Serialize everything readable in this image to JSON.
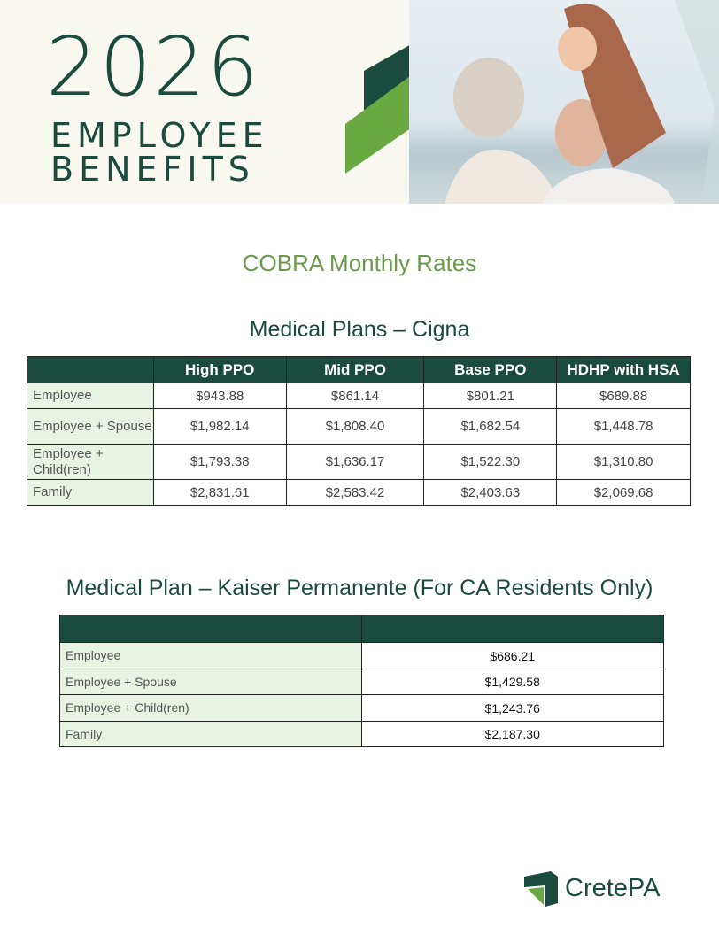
{
  "header": {
    "year": "2026",
    "line1": "EMPLOYEE",
    "line2": "BENEFITS"
  },
  "page_title": "COBRA Monthly Rates",
  "cigna": {
    "title": "Medical Plans – Cigna",
    "columns": [
      "",
      "High PPO",
      "Mid PPO",
      "Base PPO",
      "HDHP with HSA"
    ],
    "rows": [
      {
        "tier": "Employee",
        "values": [
          "$943.88",
          "$861.14",
          "$801.21",
          "$689.88"
        ]
      },
      {
        "tier": "Employee + Spouse",
        "values": [
          "$1,982.14",
          "$1,808.40",
          "$1,682.54",
          "$1,448.78"
        ]
      },
      {
        "tier": "Employee + Child(ren)",
        "values": [
          "$1,793.38",
          "$1,636.17",
          "$1,522.30",
          "$1,310.80"
        ]
      },
      {
        "tier": "Family",
        "values": [
          "$2,831.61",
          "$2,583.42",
          "$2,403.63",
          "$2,069.68"
        ]
      }
    ]
  },
  "kaiser": {
    "title": "Medical Plan – Kaiser Permanente (For CA Residents Only)",
    "rows": [
      {
        "tier": "Employee",
        "value": "$686.21"
      },
      {
        "tier": "Employee + Spouse",
        "value": "$1,429.58"
      },
      {
        "tier": "Employee + Child(ren)",
        "value": "$1,243.76"
      },
      {
        "tier": "Family",
        "value": "$2,187.30"
      }
    ]
  },
  "logo": {
    "text": "CretePA"
  },
  "colors": {
    "dark_green": "#1b4a3e",
    "light_green": "#6aa842",
    "title_green": "#6a9a4a",
    "row_label_bg": "#e9f3e3"
  }
}
